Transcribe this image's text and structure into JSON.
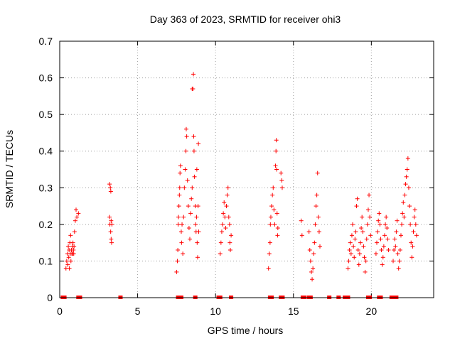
{
  "chart_data": {
    "type": "scatter",
    "title": "Day 363 of 2023, SRMTID for receiver ohi3",
    "xlabel": "GPS time / hours",
    "ylabel": "SRMTID / TECUs",
    "xlim": [
      0,
      24
    ],
    "ylim": [
      0,
      0.7
    ],
    "xticks": [
      0,
      5,
      10,
      15,
      20
    ],
    "yticks": [
      0,
      0.1,
      0.2,
      0.3,
      0.4,
      0.5,
      0.6,
      0.7
    ],
    "grid": true,
    "marker": "+",
    "color": "#ff0000",
    "series": [
      {
        "name": "SRMTID",
        "points": [
          [
            0.4,
            0.08
          ],
          [
            0.45,
            0.1
          ],
          [
            0.5,
            0.12
          ],
          [
            0.52,
            0.09
          ],
          [
            0.55,
            0.14
          ],
          [
            0.58,
            0.11
          ],
          [
            0.6,
            0.13
          ],
          [
            0.62,
            0.08
          ],
          [
            0.65,
            0.15
          ],
          [
            0.68,
            0.12
          ],
          [
            0.7,
            0.17
          ],
          [
            0.72,
            0.1
          ],
          [
            0.75,
            0.13
          ],
          [
            0.78,
            0.12
          ],
          [
            0.8,
            0.14
          ],
          [
            0.82,
            0.12
          ],
          [
            0.85,
            0.15
          ],
          [
            0.88,
            0.13
          ],
          [
            0.9,
            0.12
          ],
          [
            0.92,
            0.14
          ],
          [
            0.95,
            0.18
          ],
          [
            1.0,
            0.21
          ],
          [
            1.05,
            0.24
          ],
          [
            1.1,
            0.22
          ],
          [
            1.2,
            0.23
          ],
          [
            3.2,
            0.31
          ],
          [
            3.25,
            0.3
          ],
          [
            3.28,
            0.29
          ],
          [
            3.2,
            0.22
          ],
          [
            3.3,
            0.21
          ],
          [
            3.22,
            0.2
          ],
          [
            3.35,
            0.2
          ],
          [
            3.27,
            0.18
          ],
          [
            3.3,
            0.16
          ],
          [
            3.33,
            0.15
          ],
          [
            7.5,
            0.07
          ],
          [
            7.55,
            0.1
          ],
          [
            7.58,
            0.13
          ],
          [
            7.6,
            0.2
          ],
          [
            7.62,
            0.22
          ],
          [
            7.65,
            0.25
          ],
          [
            7.68,
            0.28
          ],
          [
            7.7,
            0.3
          ],
          [
            7.72,
            0.34
          ],
          [
            7.75,
            0.36
          ],
          [
            7.8,
            0.18
          ],
          [
            7.82,
            0.15
          ],
          [
            7.85,
            0.2
          ],
          [
            7.9,
            0.12
          ],
          [
            7.95,
            0.22
          ],
          [
            8.0,
            0.3
          ],
          [
            8.05,
            0.35
          ],
          [
            8.1,
            0.4
          ],
          [
            8.12,
            0.46
          ],
          [
            8.15,
            0.44
          ],
          [
            8.2,
            0.32
          ],
          [
            8.25,
            0.25
          ],
          [
            8.3,
            0.19
          ],
          [
            8.35,
            0.16
          ],
          [
            8.4,
            0.23
          ],
          [
            8.45,
            0.27
          ],
          [
            8.5,
            0.3
          ],
          [
            8.5,
            0.57
          ],
          [
            8.55,
            0.57
          ],
          [
            8.58,
            0.61
          ],
          [
            8.6,
            0.44
          ],
          [
            8.62,
            0.4
          ],
          [
            8.65,
            0.33
          ],
          [
            8.7,
            0.25
          ],
          [
            8.72,
            0.2
          ],
          [
            8.75,
            0.18
          ],
          [
            8.78,
            0.22
          ],
          [
            8.8,
            0.35
          ],
          [
            8.82,
            0.15
          ],
          [
            8.85,
            0.11
          ],
          [
            8.88,
            0.25
          ],
          [
            8.9,
            0.42
          ],
          [
            8.92,
            0.18
          ],
          [
            10.3,
            0.12
          ],
          [
            10.35,
            0.15
          ],
          [
            10.4,
            0.18
          ],
          [
            10.45,
            0.2
          ],
          [
            10.5,
            0.23
          ],
          [
            10.55,
            0.26
          ],
          [
            10.6,
            0.22
          ],
          [
            10.65,
            0.19
          ],
          [
            10.7,
            0.25
          ],
          [
            10.75,
            0.28
          ],
          [
            10.8,
            0.3
          ],
          [
            10.85,
            0.22
          ],
          [
            10.9,
            0.2
          ],
          [
            10.92,
            0.15
          ],
          [
            10.95,
            0.13
          ],
          [
            11.0,
            0.17
          ],
          [
            13.4,
            0.08
          ],
          [
            13.45,
            0.12
          ],
          [
            13.5,
            0.15
          ],
          [
            13.52,
            0.2
          ],
          [
            13.55,
            0.22
          ],
          [
            13.6,
            0.25
          ],
          [
            13.65,
            0.28
          ],
          [
            13.7,
            0.3
          ],
          [
            13.75,
            0.24
          ],
          [
            13.8,
            0.2
          ],
          [
            13.85,
            0.36
          ],
          [
            13.88,
            0.4
          ],
          [
            13.9,
            0.43
          ],
          [
            13.92,
            0.35
          ],
          [
            13.95,
            0.23
          ],
          [
            13.98,
            0.17
          ],
          [
            14.0,
            0.19
          ],
          [
            14.2,
            0.34
          ],
          [
            14.25,
            0.32
          ],
          [
            14.28,
            0.3
          ],
          [
            15.5,
            0.21
          ],
          [
            15.55,
            0.17
          ],
          [
            16.0,
            0.18
          ],
          [
            16.05,
            0.13
          ],
          [
            16.1,
            0.1
          ],
          [
            16.15,
            0.07
          ],
          [
            16.2,
            0.05
          ],
          [
            16.25,
            0.08
          ],
          [
            16.3,
            0.12
          ],
          [
            16.35,
            0.15
          ],
          [
            16.4,
            0.2
          ],
          [
            16.45,
            0.25
          ],
          [
            16.5,
            0.28
          ],
          [
            16.55,
            0.34
          ],
          [
            16.6,
            0.22
          ],
          [
            16.65,
            0.18
          ],
          [
            16.7,
            0.14
          ],
          [
            18.5,
            0.08
          ],
          [
            18.55,
            0.1
          ],
          [
            18.6,
            0.13
          ],
          [
            18.65,
            0.15
          ],
          [
            18.7,
            0.12
          ],
          [
            18.75,
            0.17
          ],
          [
            18.8,
            0.2
          ],
          [
            18.85,
            0.14
          ],
          [
            18.9,
            0.11
          ],
          [
            18.95,
            0.16
          ],
          [
            19.0,
            0.18
          ],
          [
            19.05,
            0.25
          ],
          [
            19.1,
            0.27
          ],
          [
            19.15,
            0.13
          ],
          [
            19.2,
            0.09
          ],
          [
            19.25,
            0.12
          ],
          [
            19.3,
            0.15
          ],
          [
            19.35,
            0.19
          ],
          [
            19.4,
            0.22
          ],
          [
            19.45,
            0.18
          ],
          [
            19.5,
            0.14
          ],
          [
            19.55,
            0.11
          ],
          [
            19.6,
            0.07
          ],
          [
            19.65,
            0.1
          ],
          [
            19.7,
            0.16
          ],
          [
            19.75,
            0.2
          ],
          [
            19.8,
            0.24
          ],
          [
            19.85,
            0.28
          ],
          [
            19.9,
            0.22
          ],
          [
            19.95,
            0.17
          ],
          [
            20.3,
            0.12
          ],
          [
            20.35,
            0.15
          ],
          [
            20.4,
            0.18
          ],
          [
            20.45,
            0.21
          ],
          [
            20.5,
            0.23
          ],
          [
            20.55,
            0.2
          ],
          [
            20.6,
            0.16
          ],
          [
            20.65,
            0.13
          ],
          [
            20.7,
            0.09
          ],
          [
            20.75,
            0.11
          ],
          [
            20.8,
            0.14
          ],
          [
            20.85,
            0.17
          ],
          [
            20.9,
            0.2
          ],
          [
            20.95,
            0.22
          ],
          [
            21.0,
            0.19
          ],
          [
            21.05,
            0.16
          ],
          [
            21.1,
            0.13
          ],
          [
            21.4,
            0.1
          ],
          [
            21.45,
            0.13
          ],
          [
            21.5,
            0.16
          ],
          [
            21.55,
            0.14
          ],
          [
            21.6,
            0.18
          ],
          [
            21.65,
            0.21
          ],
          [
            21.7,
            0.12
          ],
          [
            21.75,
            0.08
          ],
          [
            21.8,
            0.1
          ],
          [
            21.85,
            0.13
          ],
          [
            21.9,
            0.17
          ],
          [
            21.95,
            0.2
          ],
          [
            22.0,
            0.23
          ],
          [
            22.05,
            0.26
          ],
          [
            22.1,
            0.22
          ],
          [
            22.15,
            0.28
          ],
          [
            22.2,
            0.31
          ],
          [
            22.25,
            0.33
          ],
          [
            22.3,
            0.35
          ],
          [
            22.35,
            0.38
          ],
          [
            22.4,
            0.3
          ],
          [
            22.45,
            0.25
          ],
          [
            22.5,
            0.2
          ],
          [
            22.55,
            0.15
          ],
          [
            22.6,
            0.11
          ],
          [
            22.65,
            0.14
          ],
          [
            22.7,
            0.18
          ],
          [
            22.75,
            0.22
          ],
          [
            22.8,
            0.24
          ],
          [
            22.85,
            0.2
          ],
          [
            22.9,
            0.17
          ]
        ],
        "zero_points": [
          0.2,
          0.3,
          1.2,
          1.3,
          3.9,
          7.6,
          7.8,
          8.7,
          10.2,
          10.3,
          11.0,
          13.5,
          13.6,
          14.2,
          14.3,
          15.6,
          15.7,
          16.0,
          16.1,
          17.3,
          17.9,
          18.3,
          18.5,
          19.8,
          19.9,
          20.5,
          20.6,
          21.3,
          21.5,
          21.6
        ]
      }
    ]
  }
}
